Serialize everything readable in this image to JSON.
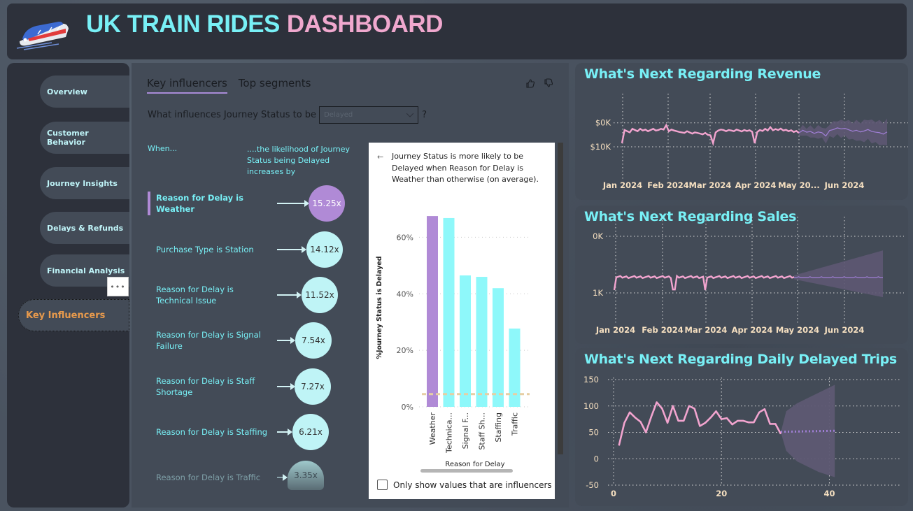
{
  "header": {
    "title_part1": "UK TRAIN RIDES",
    "title_part2": "DASHBOARD",
    "logo_icon": "train-icon"
  },
  "sidebar": {
    "items": [
      {
        "label": "Overview",
        "active": false
      },
      {
        "label": "Customer Behavior",
        "active": false
      },
      {
        "label": "Journey Insights",
        "active": false
      },
      {
        "label": "Delays & Refunds",
        "active": false
      },
      {
        "label": "Financial Analysis",
        "active": false
      },
      {
        "label": "Key Influencers",
        "active": true
      }
    ],
    "more_label": "•••"
  },
  "key_influencers": {
    "tabs": [
      {
        "label": "Key influencers",
        "active": true
      },
      {
        "label": "Top segments",
        "active": false
      }
    ],
    "question_prefix": "What influences Journey Status to be",
    "dropdown_value": "Delayed",
    "question_suffix": "?",
    "col_when": "When...",
    "col_likelihood": "....the likelihood of Journey Status being Delayed increases by",
    "influencers": [
      {
        "label": "Reason for Delay is Weather",
        "value": "15.25x",
        "selected": true
      },
      {
        "label": "Purchase Type is Station",
        "value": "14.12x"
      },
      {
        "label": "Reason for Delay is Technical Issue",
        "value": "11.52x"
      },
      {
        "label": "Reason for Delay is Signal Failure",
        "value": "7.54x"
      },
      {
        "label": "Reason for Delay is Staff Shortage",
        "value": "7.27x"
      },
      {
        "label": "Reason for Delay is Staffing",
        "value": "6.21x"
      },
      {
        "label": "Reason for Delay is Traffic",
        "value": "3.35x",
        "faded": true
      }
    ],
    "detail": {
      "back_icon": "arrow-left-icon",
      "text": "Journey Status is more likely to be Delayed when Reason for Delay is Weather than otherwise (on average).",
      "only_show_label": "Only show values that are influencers",
      "only_show_checked": false
    }
  },
  "chart_data": [
    {
      "type": "bar",
      "title": "",
      "xlabel": "Reason for Delay",
      "ylabel": "%Journey Status is Delayed",
      "categories": [
        "Weather",
        "Technica...",
        "Signal F...",
        "Staff Sh...",
        "Staffing",
        "Traffic"
      ],
      "values": [
        67.5,
        66.8,
        46.5,
        46.0,
        42.0,
        27.7
      ],
      "highlight": "Weather",
      "average_line": 4.5,
      "ylim": [
        0,
        70
      ],
      "yticks": [
        "0%",
        "20%",
        "40%",
        "60%"
      ],
      "colors": {
        "highlight": "#b08ad6",
        "bar": "#8ef8fa",
        "average": "#e6cfa4"
      }
    },
    {
      "type": "line",
      "title": "What's Next Regarding Revenue",
      "xticks": [
        "Jan 2024",
        "Feb 2024",
        "Mar 2024",
        "Apr 2024",
        "May 20...",
        "Jun 2024"
      ],
      "yticks": [
        "$0K",
        "$10K"
      ],
      "ylim": [
        -3500,
        14000
      ],
      "actual_pattern": [
        1500,
        7000,
        6500,
        6000,
        7500,
        7000,
        6500,
        7500,
        6800,
        7200,
        6500,
        7000,
        7500,
        6800,
        7000,
        7500,
        7200,
        9000,
        6500,
        7200,
        6800,
        6500,
        6200,
        6000,
        5800,
        6500,
        6000,
        5500,
        6000,
        5800,
        5500,
        5200,
        5800,
        5000,
        4800,
        1500,
        6000,
        6800,
        7200,
        7000,
        6500,
        7000,
        6800,
        6500,
        7200,
        6800,
        6400,
        7000,
        6600,
        6900,
        6300,
        1500,
        6200,
        7000,
        6600,
        7500,
        6800,
        8200,
        6900,
        7400,
        7000,
        7600,
        6800,
        7100,
        6500,
        6900,
        6200,
        6600,
        5800
      ],
      "forecast_pattern": [
        5800,
        6900,
        6100,
        6400,
        5600,
        6200,
        5900,
        4500,
        6800,
        7200,
        7900,
        7500,
        7700,
        7100,
        6500,
        6900,
        6200,
        6600,
        7200,
        6400,
        6100,
        5900,
        5300,
        6200
      ],
      "forecast_band_half_width": [
        1500,
        5000
      ],
      "colors": {
        "actual": "#f2a4cf",
        "forecast": "#a07fd6",
        "band": "#5e5873"
      }
    },
    {
      "type": "line",
      "title": "What's Next Regarding Sales",
      "xticks": [
        "Jan 2024",
        "Feb 2024",
        "Mar 2024",
        "Apr 2024",
        "May 2024",
        "Jun 2024"
      ],
      "yticks": [
        "0K",
        "1K"
      ],
      "ylim": [
        0,
        1000
      ],
      "actual_level": 280,
      "dips": [
        {
          "position": 0.33,
          "value": 60
        },
        {
          "position": 0.5,
          "value": 50
        }
      ],
      "forecast_level": 270,
      "forecast_band_half_width": [
        40,
        480
      ],
      "colors": {
        "actual": "#f2a4cf",
        "forecast": "#a07fd6",
        "band": "#5e5873"
      }
    },
    {
      "type": "line",
      "title": "What's Next Regarding Daily Delayed Trips",
      "xticks": [
        "0",
        "20",
        "40"
      ],
      "yticks": [
        "-50",
        "0",
        "50",
        "100",
        "150"
      ],
      "xlim": [
        0,
        52
      ],
      "ylim": [
        -50,
        150
      ],
      "actual_x": [
        1,
        2,
        3,
        4,
        5,
        6,
        7,
        8,
        9,
        10,
        11,
        12,
        13,
        14,
        15,
        16,
        17,
        18,
        19,
        20,
        21,
        22,
        23,
        24,
        25,
        26,
        27,
        28,
        29,
        30,
        31
      ],
      "actual_y": [
        25,
        68,
        88,
        78,
        70,
        50,
        80,
        107,
        95,
        68,
        100,
        72,
        72,
        100,
        95,
        62,
        68,
        78,
        90,
        75,
        77,
        65,
        72,
        72,
        69,
        69,
        88,
        94,
        66,
        66,
        47
      ],
      "forecast_x": [
        31,
        41
      ],
      "forecast_y": [
        51,
        53
      ],
      "forecast_band": {
        "x": [
          31,
          32,
          34,
          36,
          38,
          41
        ],
        "upper": [
          50,
          90,
          105,
          115,
          125,
          140
        ],
        "lower": [
          50,
          15,
          -5,
          -15,
          -25,
          -35
        ]
      },
      "colors": {
        "actual": "#f2a4cf",
        "forecast": "#a07fd6",
        "band": "#5e5873"
      }
    }
  ]
}
